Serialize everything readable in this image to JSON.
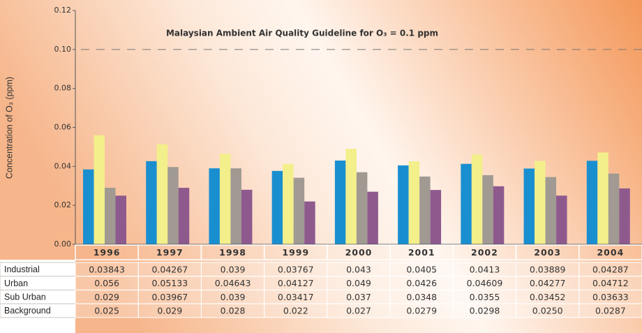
{
  "chart_data": {
    "type": "bar",
    "y_label": "Concentration of O₃ (ppm)",
    "guideline": {
      "label": "Malaysian Ambient Air Quality Guideline for O₃ = 0.1 ppm",
      "value": 0.1
    },
    "categories": [
      "1996",
      "1997",
      "1998",
      "1999",
      "2000",
      "2001",
      "2002",
      "2003",
      "2004"
    ],
    "series": [
      {
        "name": "Industrial",
        "color": "#1a8fd0",
        "values": [
          0.03843,
          0.04267,
          0.039,
          0.03767,
          0.043,
          0.0405,
          0.0413,
          0.03889,
          0.04287
        ],
        "value_labels": [
          "0.03843",
          "0.04267",
          "0.039",
          "0.03767",
          "0.043",
          "0.0405",
          "0.0413",
          "0.03889",
          "0.04287"
        ]
      },
      {
        "name": "Urban",
        "color": "#f3ef8a",
        "values": [
          0.056,
          0.05133,
          0.04643,
          0.04127,
          0.049,
          0.0426,
          0.04609,
          0.04277,
          0.04712
        ],
        "value_labels": [
          "0.056",
          "0.05133",
          "0.04643",
          "0.04127",
          "0.049",
          "0.0426",
          "0.04609",
          "0.04277",
          "0.04712"
        ]
      },
      {
        "name": "Sub Urban",
        "color": "#a09a93",
        "values": [
          0.029,
          0.03967,
          0.039,
          0.03417,
          0.037,
          0.0348,
          0.0355,
          0.03452,
          0.03633
        ],
        "value_labels": [
          "0.029",
          "0.03967",
          "0.039",
          "0.03417",
          "0.037",
          "0.0348",
          "0.0355",
          "0.03452",
          "0.03633"
        ]
      },
      {
        "name": "Background",
        "color": "#8e5a8e",
        "values": [
          0.025,
          0.029,
          0.028,
          0.022,
          0.027,
          0.0279,
          0.0298,
          0.025,
          0.0287
        ],
        "value_labels": [
          "0.025",
          "0.029",
          "0.028",
          "0.022",
          "0.027",
          "0.0279",
          "0.0298",
          "0.0250",
          "0.0287"
        ]
      }
    ],
    "ylim": [
      0,
      0.12
    ],
    "yticks": [
      {
        "value": 0,
        "label": "0.00"
      },
      {
        "value": 0.02,
        "label": "0.02"
      },
      {
        "value": 0.04,
        "label": "0.04"
      },
      {
        "value": 0.06,
        "label": "0.06"
      },
      {
        "value": 0.08,
        "label": "0.08"
      },
      {
        "value": 0.1,
        "label": "0.10"
      },
      {
        "value": 0.12,
        "label": "0.12"
      }
    ]
  }
}
